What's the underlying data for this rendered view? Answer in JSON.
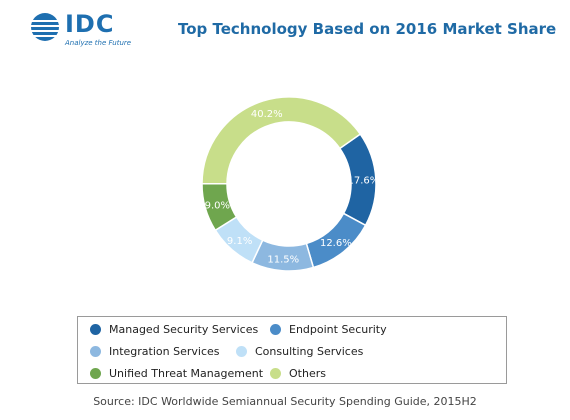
{
  "logo": {
    "wordmark": "IDC",
    "tagline": "Analyze the Future",
    "color": "#1e6fb0"
  },
  "chart_data": {
    "type": "pie",
    "title": "Top Technology Based on 2016 Market Share",
    "donut": true,
    "categories": [
      "Managed Security Services",
      "Endpoint Security",
      "Integration Services",
      "Consulting Services",
      "Unified Threat Management",
      "Others"
    ],
    "values": [
      17.6,
      12.6,
      11.5,
      9.1,
      9.0,
      40.2
    ],
    "labels": [
      "17.6%",
      "12.6%",
      "11.5%",
      "9.1%",
      "9.0%",
      "40.2%"
    ],
    "colors": [
      "#1f64a3",
      "#4b8cc8",
      "#8db8e0",
      "#bfe0f7",
      "#6fa64e",
      "#c8de8a"
    ],
    "legend_placement": "bottom"
  },
  "source": "Source: IDC Worldwide Semiannual Security Spending Guide, 2015H2"
}
